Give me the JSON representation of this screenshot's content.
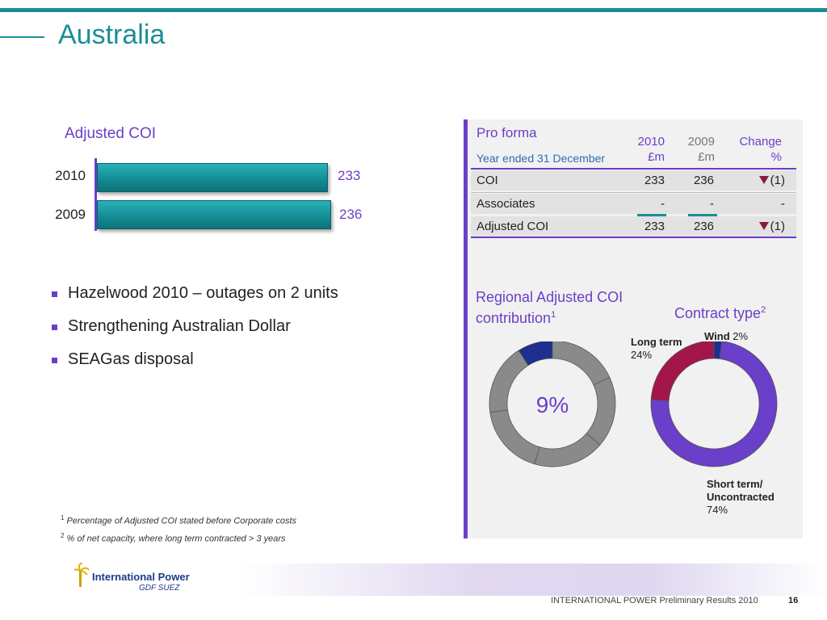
{
  "slide": {
    "title": "Australia"
  },
  "adjusted_coi": {
    "heading": "Adjusted COI",
    "bars": [
      {
        "year": "2010",
        "value": "233"
      },
      {
        "year": "2009",
        "value": "236"
      }
    ]
  },
  "bullets": [
    "Hazelwood 2010 – outages on 2 units",
    "Strengthening Australian Dollar",
    "SEAGas disposal"
  ],
  "footnotes": [
    {
      "mark": "1",
      "text": "Percentage of Adjusted COI stated before Corporate costs"
    },
    {
      "mark": "2",
      "text": "% of net capacity, where long term contracted > 3 years"
    }
  ],
  "pro_forma": {
    "title": "Pro forma",
    "subtitle": "Year ended 31 December",
    "col_2010": [
      "2010",
      "£m"
    ],
    "col_2009": [
      "2009",
      "£m"
    ],
    "col_change": [
      "Change",
      "%"
    ],
    "rows": [
      {
        "label": "COI",
        "v2010": "233",
        "v2009": "236",
        "change": "(1)",
        "down": true
      },
      {
        "label": "Associates",
        "v2010": "-",
        "v2009": "-",
        "change": "-",
        "down": false
      },
      {
        "label": "Adjusted COI",
        "v2010": "233",
        "v2009": "236",
        "change": "(1)",
        "down": true
      }
    ],
    "colors": {
      "accent": "#6a3fc9",
      "teal": "#1a8e95",
      "down_arrow": "#8b1a3d"
    }
  },
  "regional": {
    "title_line1": "Regional Adjusted COI",
    "title_line2": "contribution",
    "title_mark": "1",
    "center_label": "9%",
    "share": 9,
    "colors": {
      "highlight": "#1e2f8f",
      "rest": "#8a8a8a"
    }
  },
  "contract": {
    "title": "Contract type",
    "title_mark": "2",
    "segments": [
      {
        "name": "Wind",
        "value_label": "2%",
        "value": 2,
        "color": "#1e2f8f"
      },
      {
        "name": "Short term/",
        "name2": "Uncontracted",
        "value_label": "74%",
        "value": 74,
        "color": "#6a3fc9"
      },
      {
        "name": "Long term",
        "value_label": "24%",
        "value": 24,
        "color": "#a3164a"
      }
    ]
  },
  "footer": {
    "logo_line1": "International Power",
    "logo_line2": "GDF SUEZ",
    "text": "INTERNATIONAL POWER Preliminary Results 2010",
    "page": "16"
  }
}
